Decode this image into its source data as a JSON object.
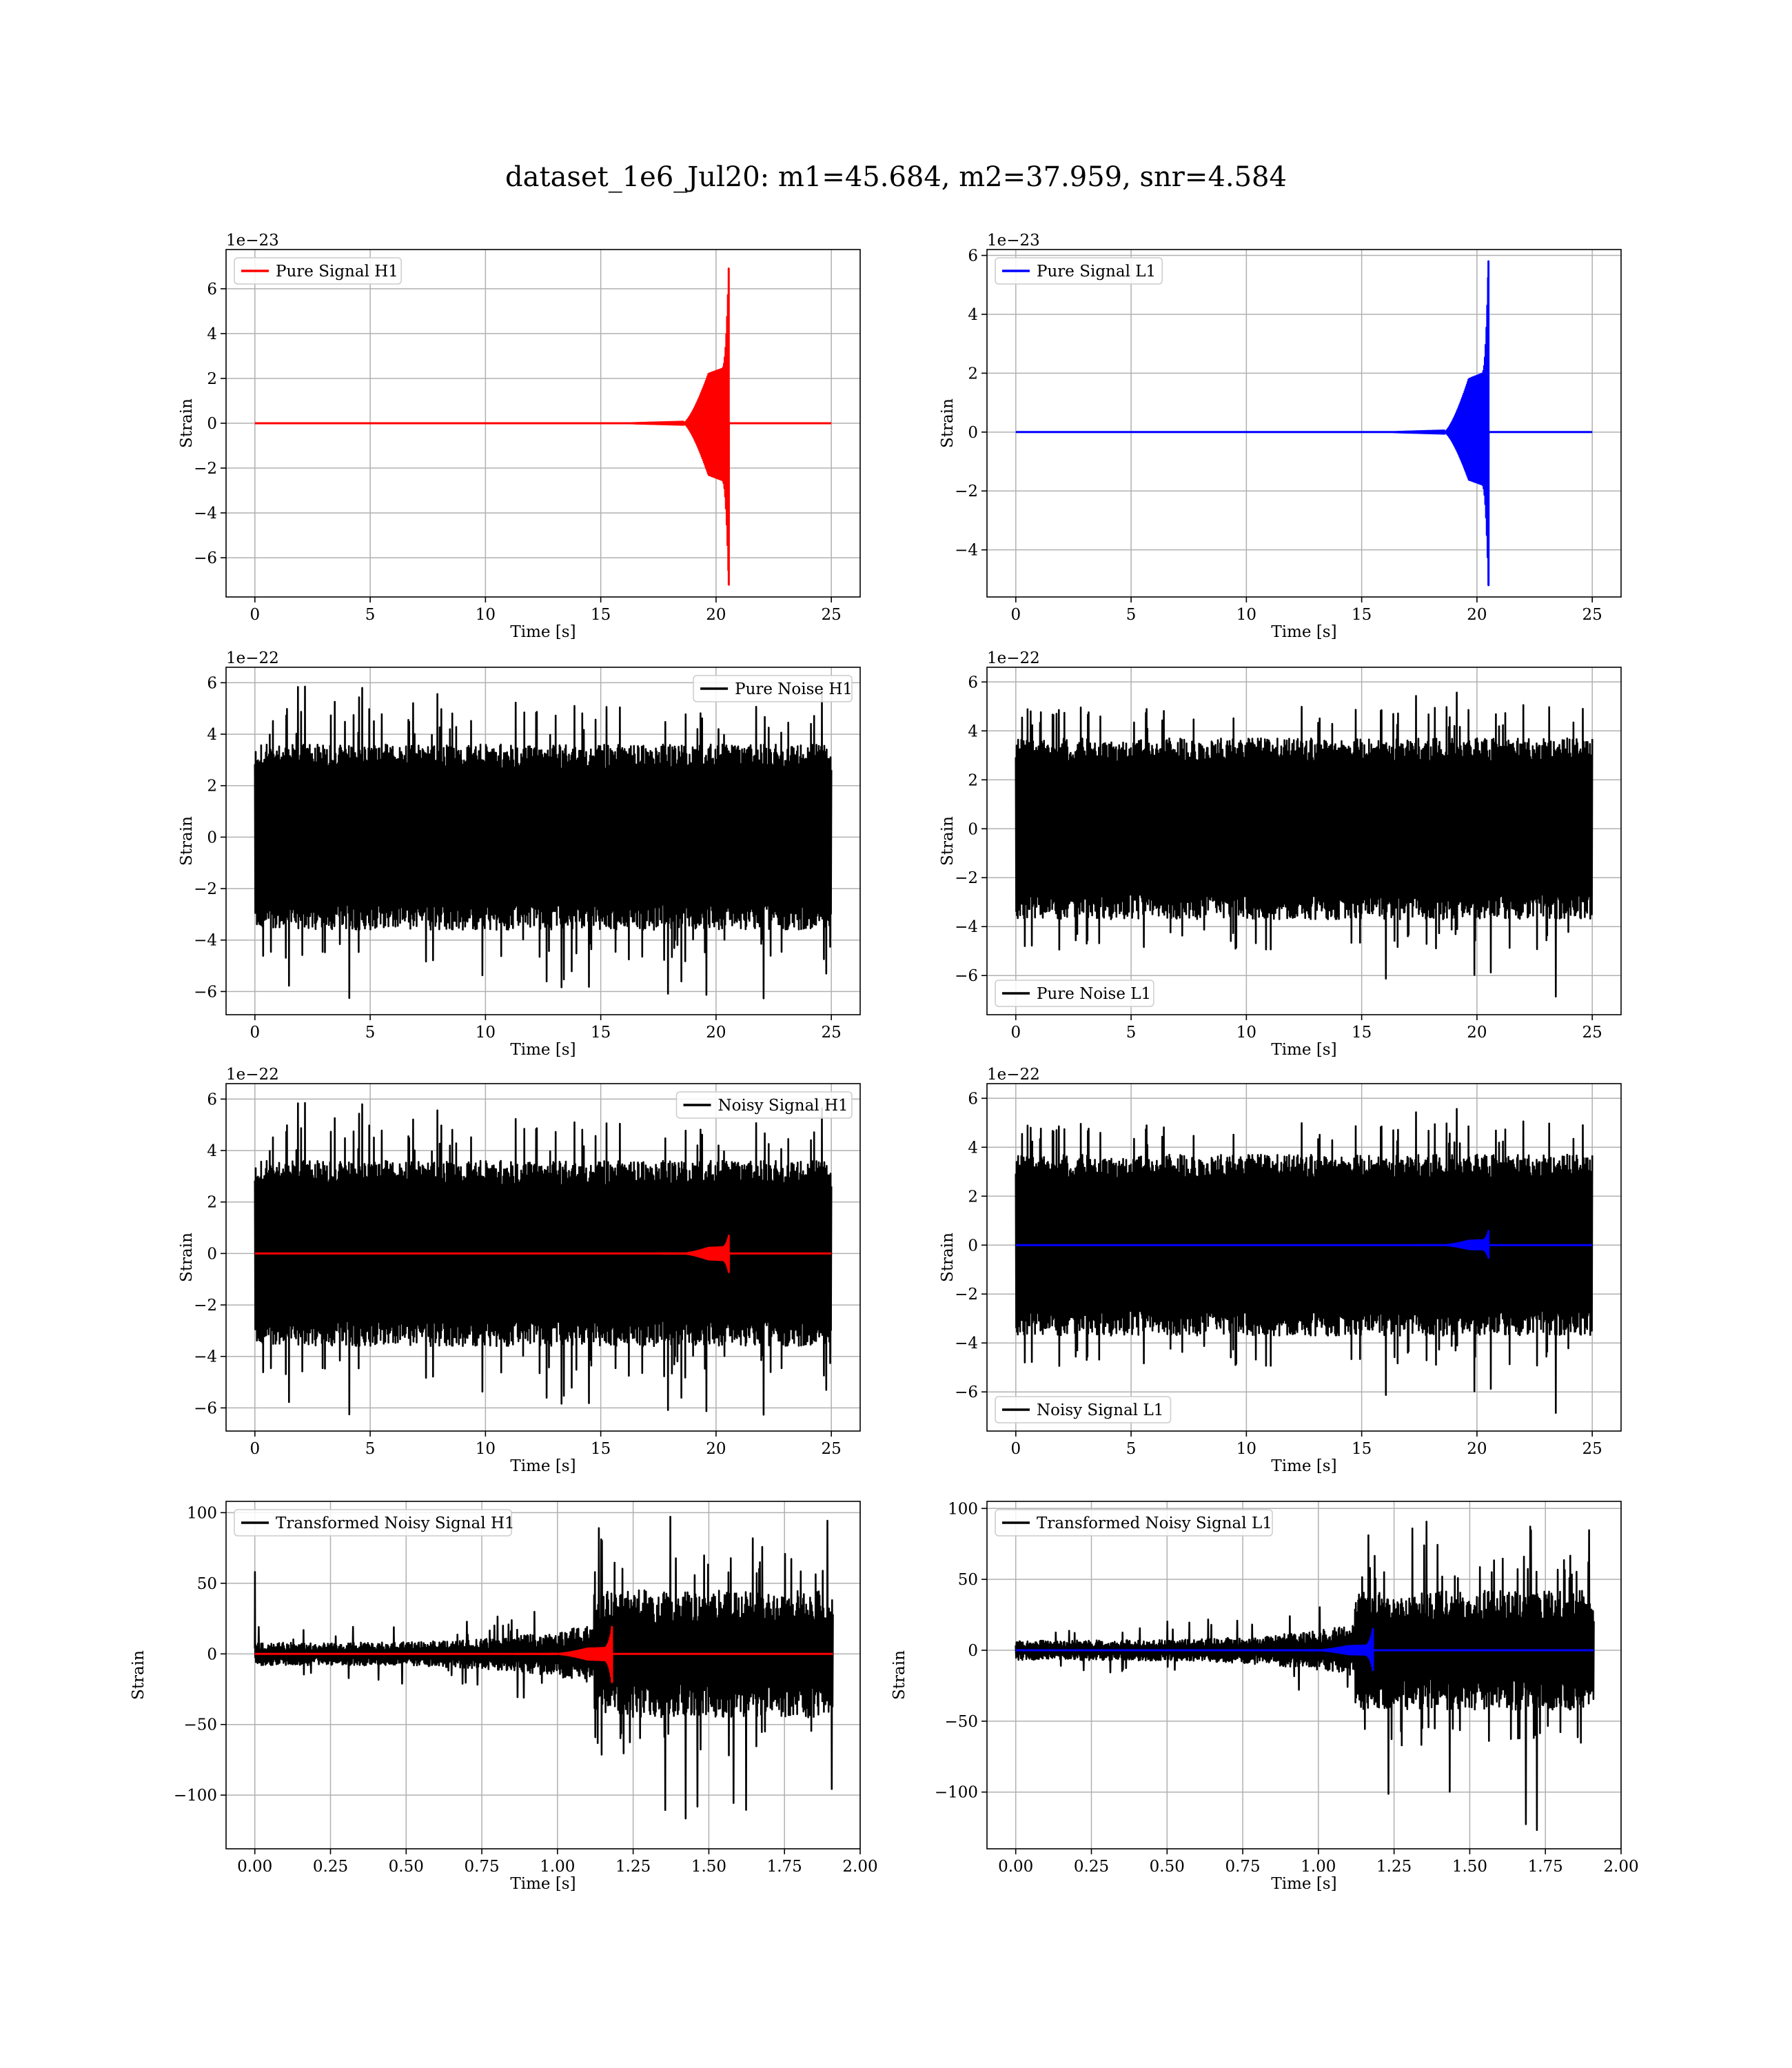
{
  "title": "dataset_1e6_Jul20: m1=45.684, m2=37.959, snr=4.584",
  "colors": {
    "h1": "#ff0000",
    "l1": "#0000ff",
    "noise": "#000000"
  },
  "chart_data": [
    {
      "id": "pure-signal-h1",
      "type": "line",
      "xlabel": "Time [s]",
      "ylabel": "Strain",
      "exponent": "1e−23",
      "xlim": [
        -1.25,
        26.25
      ],
      "ylim": [
        -7.75,
        7.75
      ],
      "xticks": [
        0,
        5,
        10,
        15,
        20,
        25
      ],
      "yticks": [
        -6,
        -4,
        -2,
        0,
        2,
        4,
        6
      ],
      "legend": {
        "position": "upper-left"
      },
      "series": [
        {
          "name": "Pure Signal H1",
          "color": "#ff0000",
          "kind": "chirp",
          "t_start": 0,
          "t_end": 25,
          "t_merger": 20.55,
          "t_onset": 18.6,
          "peak_pos": 6.9,
          "peak_neg": -7.2,
          "plateau": 2.3
        }
      ]
    },
    {
      "id": "pure-signal-l1",
      "type": "line",
      "xlabel": "Time [s]",
      "ylabel": "Strain",
      "exponent": "1e−23",
      "xlim": [
        -1.25,
        26.25
      ],
      "ylim": [
        -5.6,
        6.2
      ],
      "xticks": [
        0,
        5,
        10,
        15,
        20,
        25
      ],
      "yticks": [
        -4,
        -2,
        0,
        2,
        4,
        6
      ],
      "legend": {
        "position": "upper-left"
      },
      "series": [
        {
          "name": "Pure Signal L1",
          "color": "#0000ff",
          "kind": "chirp",
          "t_start": 0,
          "t_end": 25,
          "t_merger": 20.5,
          "t_onset": 18.6,
          "peak_pos": 5.8,
          "peak_neg": -5.2,
          "plateau": 1.8
        }
      ]
    },
    {
      "id": "pure-noise-h1",
      "type": "line",
      "xlabel": "Time [s]",
      "ylabel": "Strain",
      "exponent": "1e−22",
      "xlim": [
        -1.25,
        26.25
      ],
      "ylim": [
        -6.9,
        6.6
      ],
      "xticks": [
        0,
        5,
        10,
        15,
        20,
        25
      ],
      "yticks": [
        -6,
        -4,
        -2,
        0,
        2,
        4,
        6
      ],
      "legend": {
        "position": "upper-right"
      },
      "series": [
        {
          "name": "Pure Noise H1",
          "color": "#000000",
          "kind": "noise",
          "t_start": 0,
          "t_end": 25,
          "band": 3.6,
          "spike_max": 5.9,
          "spike_min": -6.3,
          "seed": 11
        }
      ]
    },
    {
      "id": "pure-noise-l1",
      "type": "line",
      "xlabel": "Time [s]",
      "ylabel": "Strain",
      "exponent": "1e−22",
      "xlim": [
        -1.25,
        26.25
      ],
      "ylim": [
        -7.6,
        6.6
      ],
      "xticks": [
        0,
        5,
        10,
        15,
        20,
        25
      ],
      "yticks": [
        -6,
        -4,
        -2,
        0,
        2,
        4,
        6
      ],
      "legend": {
        "position": "lower-left"
      },
      "series": [
        {
          "name": "Pure Noise L1",
          "color": "#000000",
          "kind": "noise",
          "t_start": 0,
          "t_end": 25,
          "band": 3.7,
          "spike_max": 5.8,
          "spike_min": -6.9,
          "seed": 29
        }
      ]
    },
    {
      "id": "noisy-signal-h1",
      "type": "line",
      "xlabel": "Time [s]",
      "ylabel": "Strain",
      "exponent": "1e−22",
      "xlim": [
        -1.25,
        26.25
      ],
      "ylim": [
        -6.9,
        6.6
      ],
      "xticks": [
        0,
        5,
        10,
        15,
        20,
        25
      ],
      "yticks": [
        -6,
        -4,
        -2,
        0,
        2,
        4,
        6
      ],
      "legend": {
        "position": "upper-right"
      },
      "series": [
        {
          "name": "Noisy Signal H1",
          "color": "#000000",
          "kind": "noise",
          "t_start": 0,
          "t_end": 25,
          "band": 3.6,
          "spike_max": 5.9,
          "spike_min": -6.3,
          "seed": 11
        },
        {
          "name": "",
          "color": "#ff0000",
          "kind": "chirp",
          "t_start": 0,
          "t_end": 25,
          "t_merger": 20.55,
          "t_onset": 18.6,
          "peak_pos": 0.69,
          "peak_neg": -0.72,
          "plateau": 0.23
        }
      ]
    },
    {
      "id": "noisy-signal-l1",
      "type": "line",
      "xlabel": "Time [s]",
      "ylabel": "Strain",
      "exponent": "1e−22",
      "xlim": [
        -1.25,
        26.25
      ],
      "ylim": [
        -7.6,
        6.6
      ],
      "xticks": [
        0,
        5,
        10,
        15,
        20,
        25
      ],
      "yticks": [
        -6,
        -4,
        -2,
        0,
        2,
        4,
        6
      ],
      "legend": {
        "position": "lower-left"
      },
      "series": [
        {
          "name": "Noisy Signal L1",
          "color": "#000000",
          "kind": "noise",
          "t_start": 0,
          "t_end": 25,
          "band": 3.7,
          "spike_max": 5.8,
          "spike_min": -6.9,
          "seed": 29
        },
        {
          "name": "",
          "color": "#0000ff",
          "kind": "chirp",
          "t_start": 0,
          "t_end": 25,
          "t_merger": 20.5,
          "t_onset": 18.6,
          "peak_pos": 0.58,
          "peak_neg": -0.52,
          "plateau": 0.18
        }
      ]
    },
    {
      "id": "transformed-noisy-signal-h1",
      "type": "line",
      "xlabel": "Time [s]",
      "ylabel": "Strain",
      "exponent": "",
      "xlim": [
        -0.095,
        2.0
      ],
      "ylim": [
        -138,
        108
      ],
      "xticks": [
        0.0,
        0.25,
        0.5,
        0.75,
        1.0,
        1.25,
        1.5,
        1.75,
        2.0
      ],
      "yticks": [
        -100,
        -50,
        0,
        50,
        100
      ],
      "legend": {
        "position": "upper-left"
      },
      "series": [
        {
          "name": "Transformed Noisy Signal H1",
          "color": "#000000",
          "kind": "whitened",
          "t_start": 0,
          "t_end": 1.91,
          "t_jump": 1.12,
          "low_band": 8,
          "low_spike": 20,
          "high_band": 45,
          "spike_max": 100,
          "spike_min": -127,
          "initial_spike": 58,
          "seed": 47
        },
        {
          "name": "",
          "color": "#ff0000",
          "kind": "chirp",
          "t_start": 0,
          "t_end": 1.91,
          "t_merger": 1.18,
          "t_onset": 1.0,
          "peak_pos": 19,
          "peak_neg": -20,
          "plateau": 4
        }
      ]
    },
    {
      "id": "transformed-noisy-signal-l1",
      "type": "line",
      "xlabel": "Time [s]",
      "ylabel": "Strain",
      "exponent": "",
      "xlim": [
        -0.095,
        2.0
      ],
      "ylim": [
        -140,
        105
      ],
      "xticks": [
        0.0,
        0.25,
        0.5,
        0.75,
        1.0,
        1.25,
        1.5,
        1.75,
        2.0
      ],
      "yticks": [
        -100,
        -50,
        0,
        50,
        100
      ],
      "legend": {
        "position": "upper-left"
      },
      "series": [
        {
          "name": "Transformed Noisy Signal L1",
          "color": "#000000",
          "kind": "whitened",
          "t_start": 0,
          "t_end": 1.91,
          "t_jump": 1.12,
          "low_band": 7,
          "low_spike": 20,
          "high_band": 42,
          "spike_max": 96,
          "spike_min": -130,
          "initial_spike": 0,
          "seed": 83
        },
        {
          "name": "",
          "color": "#0000ff",
          "kind": "chirp",
          "t_start": 0,
          "t_end": 1.91,
          "t_merger": 1.18,
          "t_onset": 1.0,
          "peak_pos": 15,
          "peak_neg": -14,
          "plateau": 3
        }
      ]
    }
  ]
}
